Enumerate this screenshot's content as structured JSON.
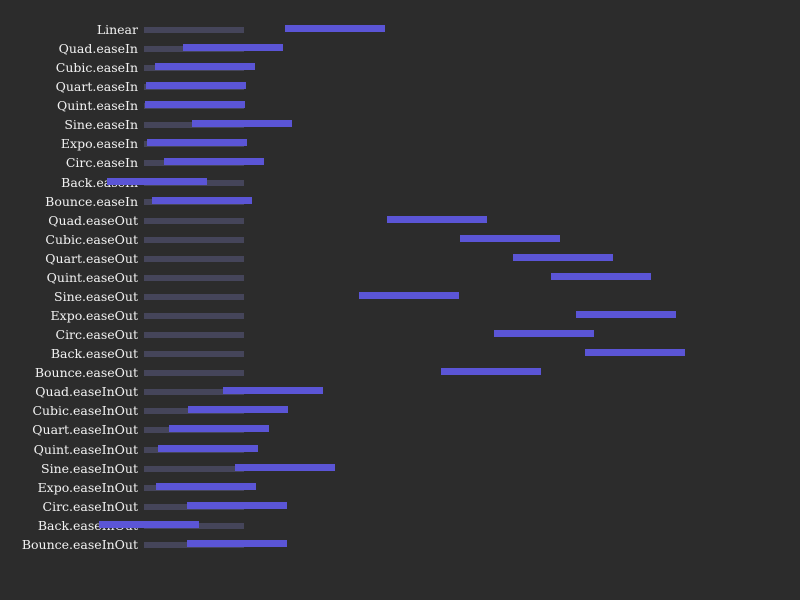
{
  "colors": {
    "background": "#2c2c2c",
    "track": "#45455a",
    "bar": "#5b55d6",
    "text": "#f2f2f2"
  },
  "easings": [
    {
      "label": "Linear",
      "progress": 1.41
    },
    {
      "label": "Quad.easeIn",
      "progress": 0.39
    },
    {
      "label": "Cubic.easeIn",
      "progress": 0.11
    },
    {
      "label": "Quart.easeIn",
      "progress": 0.02
    },
    {
      "label": "Quint.easeIn",
      "progress": 0.01
    },
    {
      "label": "Sine.easeIn",
      "progress": 0.48
    },
    {
      "label": "Expo.easeIn",
      "progress": 0.03
    },
    {
      "label": "Circ.easeIn",
      "progress": 0.2
    },
    {
      "label": "Back.easeIn",
      "progress": -0.37
    },
    {
      "label": "Bounce.easeIn",
      "progress": 0.08
    },
    {
      "label": "Quad.easeOut",
      "progress": 2.43
    },
    {
      "label": "Cubic.easeOut",
      "progress": 3.16
    },
    {
      "label": "Quart.easeOut",
      "progress": 3.69
    },
    {
      "label": "Quint.easeOut",
      "progress": 4.07
    },
    {
      "label": "Sine.easeOut",
      "progress": 2.15
    },
    {
      "label": "Expo.easeOut",
      "progress": 4.32
    },
    {
      "label": "Circ.easeOut",
      "progress": 3.5
    },
    {
      "label": "Back.easeOut",
      "progress": 4.41
    },
    {
      "label": "Bounce.easeOut",
      "progress": 2.97
    },
    {
      "label": "Quad.easeInOut",
      "progress": 0.79
    },
    {
      "label": "Cubic.easeInOut",
      "progress": 0.44
    },
    {
      "label": "Quart.easeInOut",
      "progress": 0.25
    },
    {
      "label": "Quint.easeInOut",
      "progress": 0.14
    },
    {
      "label": "Sine.easeInOut",
      "progress": 0.91
    },
    {
      "label": "Expo.easeInOut",
      "progress": 0.12
    },
    {
      "label": "Circ.easeInOut",
      "progress": 0.43
    },
    {
      "label": "Back.easeInOut",
      "progress": -0.45
    },
    {
      "label": "Bounce.easeInOut",
      "progress": 0.43
    }
  ]
}
